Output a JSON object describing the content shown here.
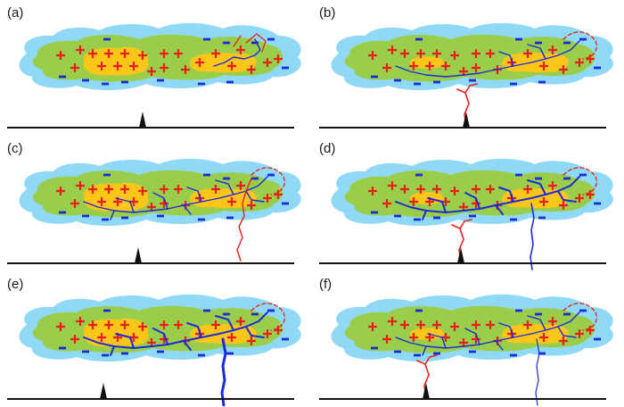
{
  "panels": [
    {
      "label": "(a)",
      "channels": "none"
    },
    {
      "label": "(b)",
      "channels": "upward-tower"
    },
    {
      "label": "(c)",
      "channels": "downward-leader"
    },
    {
      "label": "(d)",
      "channels": "downward-and-tower"
    },
    {
      "label": "(e)",
      "channels": "return-stroke"
    },
    {
      "label": "(f)",
      "channels": "decayed"
    }
  ],
  "colors": {
    "outer_cloud": "#8fd8f6",
    "inner_cloud": "#9acd4a",
    "charge_core": "#ffc61a",
    "positive": "#e8201c",
    "negative": "#1b2bd8",
    "ground": "#111111"
  },
  "icons": {
    "positive_charge": "plus-icon",
    "negative_charge": "minus-icon",
    "tower": "tower-icon"
  }
}
